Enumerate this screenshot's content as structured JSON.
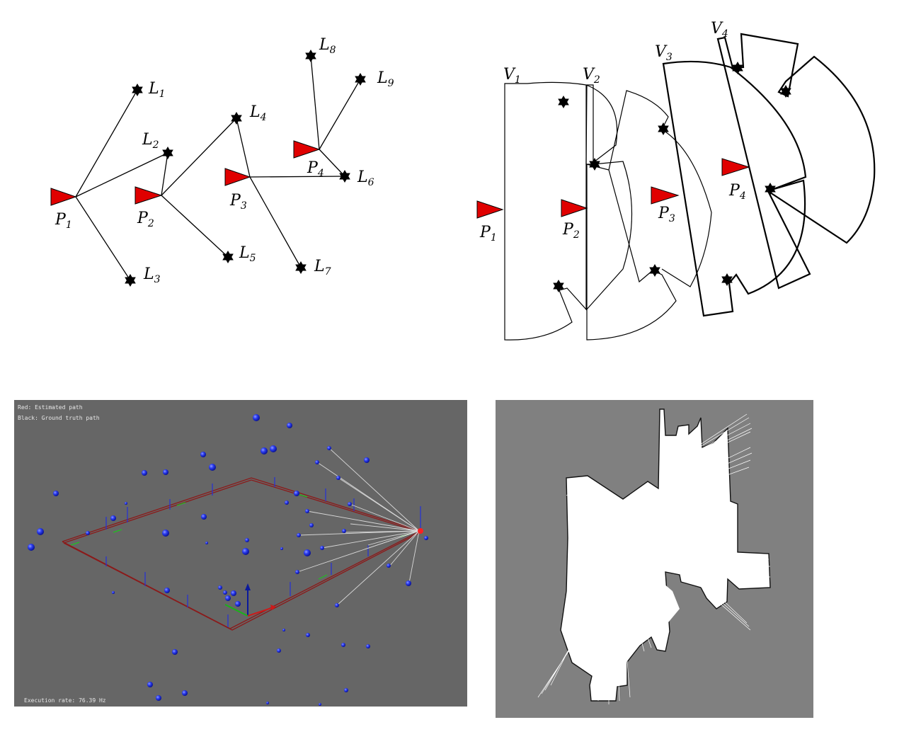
{
  "graph_panel": {
    "poses": [
      {
        "base": "P",
        "sub": "1"
      },
      {
        "base": "P",
        "sub": "2"
      },
      {
        "base": "P",
        "sub": "3"
      },
      {
        "base": "P",
        "sub": "4"
      }
    ],
    "landmarks": [
      {
        "base": "L",
        "sub": "1"
      },
      {
        "base": "L",
        "sub": "2"
      },
      {
        "base": "L",
        "sub": "3"
      },
      {
        "base": "L",
        "sub": "4"
      },
      {
        "base": "L",
        "sub": "5"
      },
      {
        "base": "L",
        "sub": "6"
      },
      {
        "base": "L",
        "sub": "7"
      },
      {
        "base": "L",
        "sub": "8"
      },
      {
        "base": "L",
        "sub": "9"
      }
    ]
  },
  "visibility_panel": {
    "poses": [
      {
        "base": "P",
        "sub": "1"
      },
      {
        "base": "P",
        "sub": "2"
      },
      {
        "base": "P",
        "sub": "3"
      },
      {
        "base": "P",
        "sub": "4"
      }
    ],
    "regions": [
      {
        "base": "V",
        "sub": "1"
      },
      {
        "base": "V",
        "sub": "2"
      },
      {
        "base": "V",
        "sub": "3"
      },
      {
        "base": "V",
        "sub": "4"
      }
    ]
  },
  "sim_panel": {
    "legend_red": "Red: Estimated path",
    "legend_black": "Black: Ground truth path",
    "execution_rate": "Execution rate: 76.39  Hz"
  },
  "colors": {
    "pose_fill": "#e00000",
    "sim_bg": "#666666",
    "sim_landmark": "#1f2fe6",
    "sim_path": "#8b1a1a",
    "map_bg": "#808080",
    "map_free": "#ffffff"
  }
}
